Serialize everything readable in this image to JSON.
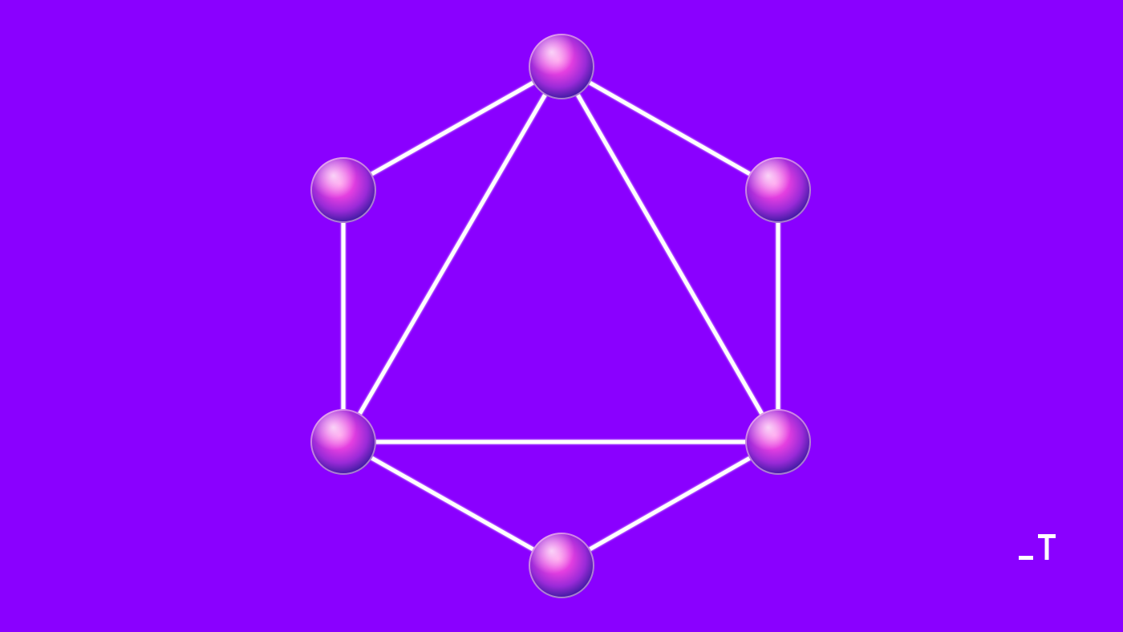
{
  "theme": {
    "background": "#8a00ff",
    "edge_color": "#ffffff",
    "node_highlight": "#ff4bd8",
    "node_shadow": "#3b1aa0"
  },
  "graphic": {
    "shape": "hexagon with inscribed triangle",
    "node_icon": "glass-sphere-node",
    "node_count": 6,
    "logo_icon": "underscore-t-logo"
  }
}
